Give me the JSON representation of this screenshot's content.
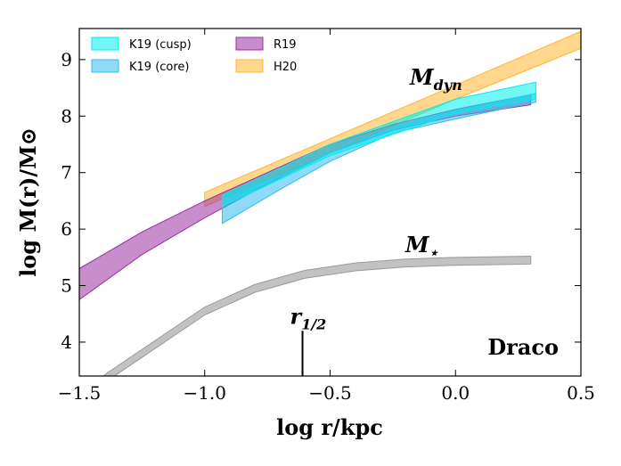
{
  "chart_data": {
    "type": "band",
    "xlabel": "log r/kpc",
    "ylabel": "log M(r)/M⊙",
    "xlim": [
      -1.5,
      0.5
    ],
    "ylim": [
      3.4,
      9.55
    ],
    "xticks": [
      {
        "value": -1.5,
        "label": "−1.5"
      },
      {
        "value": -1.0,
        "label": "−1.0"
      },
      {
        "value": -0.5,
        "label": "−0.5"
      },
      {
        "value": 0.0,
        "label": "0.0"
      },
      {
        "value": 0.5,
        "label": "0.5"
      }
    ],
    "yticks": [
      4,
      5,
      6,
      7,
      8,
      9
    ],
    "legend": "upper left",
    "series": [
      {
        "name": "K19 (cusp)",
        "color": "#00eeee",
        "x": [
          -0.93,
          -0.5,
          0.0,
          0.32
        ],
        "lower": [
          6.4,
          7.3,
          8.05,
          8.3
        ],
        "upper": [
          6.6,
          7.5,
          8.3,
          8.6
        ]
      },
      {
        "name": "K19 (core)",
        "color": "#33bbee",
        "x": [
          -0.93,
          -0.7,
          -0.5,
          -0.25,
          0.0,
          0.32
        ],
        "lower": [
          6.1,
          6.7,
          7.2,
          7.7,
          7.95,
          8.25
        ],
        "upper": [
          6.6,
          6.95,
          7.35,
          7.8,
          8.1,
          8.4
        ]
      },
      {
        "name": "R19",
        "color": "#9b30a0",
        "x": [
          -1.5,
          -1.25,
          -1.0,
          -0.75,
          -0.5,
          -0.25,
          0.0,
          0.3
        ],
        "lower": [
          4.75,
          5.55,
          6.2,
          6.8,
          7.35,
          7.75,
          8.0,
          8.2
        ],
        "upper": [
          5.3,
          5.95,
          6.5,
          7.0,
          7.5,
          7.85,
          8.12,
          8.38
        ]
      },
      {
        "name": "H20",
        "color": "#ffb732",
        "x": [
          -1.0,
          -0.5,
          0.0,
          0.5
        ],
        "lower": [
          6.4,
          7.35,
          8.3,
          9.2
        ],
        "upper": [
          6.65,
          7.6,
          8.55,
          9.5
        ]
      }
    ],
    "stellar": {
      "color": "#999999",
      "x": [
        -1.4,
        -1.2,
        -1.0,
        -0.8,
        -0.6,
        -0.4,
        -0.2,
        0.0,
        0.3
      ],
      "lower": [
        3.28,
        3.88,
        4.48,
        4.88,
        5.13,
        5.26,
        5.33,
        5.36,
        5.38
      ],
      "upper": [
        3.42,
        4.02,
        4.62,
        5.02,
        5.27,
        5.4,
        5.47,
        5.5,
        5.52
      ]
    },
    "annotations": {
      "mdyn": {
        "base": "M",
        "sub": "dyn"
      },
      "mstar": {
        "base": "M",
        "sub": "⋆"
      },
      "rhalf": {
        "base": "r",
        "sub": "1/2",
        "x": -0.61,
        "top": 4.2
      },
      "galaxy": "Draco"
    }
  }
}
